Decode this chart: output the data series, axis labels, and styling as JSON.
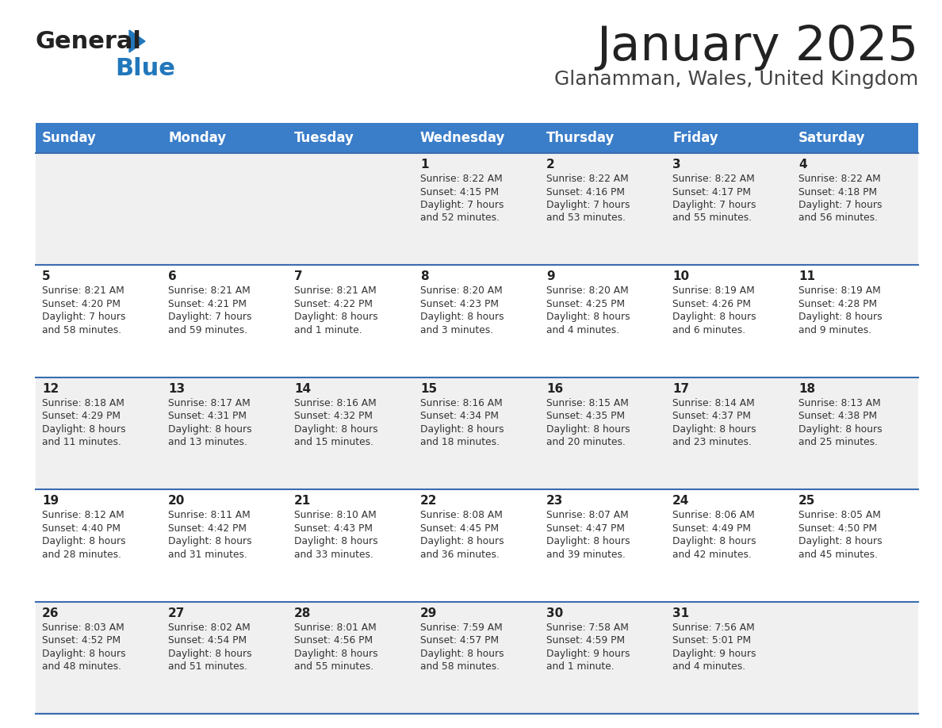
{
  "title": "January 2025",
  "subtitle": "Glanamman, Wales, United Kingdom",
  "days_of_week": [
    "Sunday",
    "Monday",
    "Tuesday",
    "Wednesday",
    "Thursday",
    "Friday",
    "Saturday"
  ],
  "header_bg": "#3a7dc9",
  "header_text": "#ffffff",
  "cell_bg_odd": "#f0f0f0",
  "cell_bg_even": "#ffffff",
  "divider_color": "#3a6cb0",
  "title_color": "#222222",
  "subtitle_color": "#444444",
  "day_num_color": "#222222",
  "cell_text_color": "#333333",
  "logo_general_color": "#222222",
  "logo_blue_color": "#2277bb",
  "calendar": [
    [
      {
        "day": null,
        "sunrise": null,
        "sunset": null,
        "daylight": null
      },
      {
        "day": null,
        "sunrise": null,
        "sunset": null,
        "daylight": null
      },
      {
        "day": null,
        "sunrise": null,
        "sunset": null,
        "daylight": null
      },
      {
        "day": 1,
        "sunrise": "8:22 AM",
        "sunset": "4:15 PM",
        "daylight": "7 hours\nand 52 minutes."
      },
      {
        "day": 2,
        "sunrise": "8:22 AM",
        "sunset": "4:16 PM",
        "daylight": "7 hours\nand 53 minutes."
      },
      {
        "day": 3,
        "sunrise": "8:22 AM",
        "sunset": "4:17 PM",
        "daylight": "7 hours\nand 55 minutes."
      },
      {
        "day": 4,
        "sunrise": "8:22 AM",
        "sunset": "4:18 PM",
        "daylight": "7 hours\nand 56 minutes."
      }
    ],
    [
      {
        "day": 5,
        "sunrise": "8:21 AM",
        "sunset": "4:20 PM",
        "daylight": "7 hours\nand 58 minutes."
      },
      {
        "day": 6,
        "sunrise": "8:21 AM",
        "sunset": "4:21 PM",
        "daylight": "7 hours\nand 59 minutes."
      },
      {
        "day": 7,
        "sunrise": "8:21 AM",
        "sunset": "4:22 PM",
        "daylight": "8 hours\nand 1 minute."
      },
      {
        "day": 8,
        "sunrise": "8:20 AM",
        "sunset": "4:23 PM",
        "daylight": "8 hours\nand 3 minutes."
      },
      {
        "day": 9,
        "sunrise": "8:20 AM",
        "sunset": "4:25 PM",
        "daylight": "8 hours\nand 4 minutes."
      },
      {
        "day": 10,
        "sunrise": "8:19 AM",
        "sunset": "4:26 PM",
        "daylight": "8 hours\nand 6 minutes."
      },
      {
        "day": 11,
        "sunrise": "8:19 AM",
        "sunset": "4:28 PM",
        "daylight": "8 hours\nand 9 minutes."
      }
    ],
    [
      {
        "day": 12,
        "sunrise": "8:18 AM",
        "sunset": "4:29 PM",
        "daylight": "8 hours\nand 11 minutes."
      },
      {
        "day": 13,
        "sunrise": "8:17 AM",
        "sunset": "4:31 PM",
        "daylight": "8 hours\nand 13 minutes."
      },
      {
        "day": 14,
        "sunrise": "8:16 AM",
        "sunset": "4:32 PM",
        "daylight": "8 hours\nand 15 minutes."
      },
      {
        "day": 15,
        "sunrise": "8:16 AM",
        "sunset": "4:34 PM",
        "daylight": "8 hours\nand 18 minutes."
      },
      {
        "day": 16,
        "sunrise": "8:15 AM",
        "sunset": "4:35 PM",
        "daylight": "8 hours\nand 20 minutes."
      },
      {
        "day": 17,
        "sunrise": "8:14 AM",
        "sunset": "4:37 PM",
        "daylight": "8 hours\nand 23 minutes."
      },
      {
        "day": 18,
        "sunrise": "8:13 AM",
        "sunset": "4:38 PM",
        "daylight": "8 hours\nand 25 minutes."
      }
    ],
    [
      {
        "day": 19,
        "sunrise": "8:12 AM",
        "sunset": "4:40 PM",
        "daylight": "8 hours\nand 28 minutes."
      },
      {
        "day": 20,
        "sunrise": "8:11 AM",
        "sunset": "4:42 PM",
        "daylight": "8 hours\nand 31 minutes."
      },
      {
        "day": 21,
        "sunrise": "8:10 AM",
        "sunset": "4:43 PM",
        "daylight": "8 hours\nand 33 minutes."
      },
      {
        "day": 22,
        "sunrise": "8:08 AM",
        "sunset": "4:45 PM",
        "daylight": "8 hours\nand 36 minutes."
      },
      {
        "day": 23,
        "sunrise": "8:07 AM",
        "sunset": "4:47 PM",
        "daylight": "8 hours\nand 39 minutes."
      },
      {
        "day": 24,
        "sunrise": "8:06 AM",
        "sunset": "4:49 PM",
        "daylight": "8 hours\nand 42 minutes."
      },
      {
        "day": 25,
        "sunrise": "8:05 AM",
        "sunset": "4:50 PM",
        "daylight": "8 hours\nand 45 minutes."
      }
    ],
    [
      {
        "day": 26,
        "sunrise": "8:03 AM",
        "sunset": "4:52 PM",
        "daylight": "8 hours\nand 48 minutes."
      },
      {
        "day": 27,
        "sunrise": "8:02 AM",
        "sunset": "4:54 PM",
        "daylight": "8 hours\nand 51 minutes."
      },
      {
        "day": 28,
        "sunrise": "8:01 AM",
        "sunset": "4:56 PM",
        "daylight": "8 hours\nand 55 minutes."
      },
      {
        "day": 29,
        "sunrise": "7:59 AM",
        "sunset": "4:57 PM",
        "daylight": "8 hours\nand 58 minutes."
      },
      {
        "day": 30,
        "sunrise": "7:58 AM",
        "sunset": "4:59 PM",
        "daylight": "9 hours\nand 1 minute."
      },
      {
        "day": 31,
        "sunrise": "7:56 AM",
        "sunset": "5:01 PM",
        "daylight": "9 hours\nand 4 minutes."
      },
      {
        "day": null,
        "sunrise": null,
        "sunset": null,
        "daylight": null
      }
    ]
  ]
}
